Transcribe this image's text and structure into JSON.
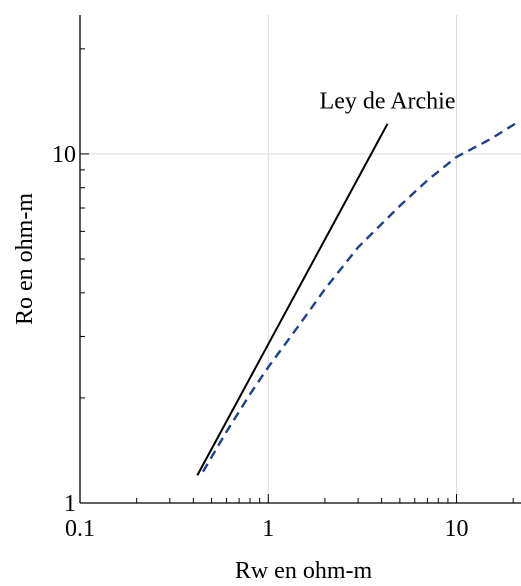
{
  "chart_data": {
    "type": "line",
    "xlabel": "Rw en ohm-m",
    "ylabel": "Ro en ohm-m",
    "x_scale": "log",
    "y_scale": "log",
    "xlim": [
      0.1,
      22
    ],
    "ylim": [
      1,
      25
    ],
    "grid": true,
    "x_ticks": [
      {
        "value": 0.1,
        "label": "0.1"
      },
      {
        "value": 1,
        "label": "1"
      },
      {
        "value": 10,
        "label": "10"
      }
    ],
    "y_ticks": [
      {
        "value": 1,
        "label": "1"
      },
      {
        "value": 10,
        "label": "10"
      }
    ],
    "annotations": [
      {
        "text": "Ley de Archie",
        "x": 4.3,
        "y": 13.5
      }
    ],
    "series": [
      {
        "name": "Ley de Archie",
        "color": "#000000",
        "style": "solid",
        "x": [
          0.42,
          4.3
        ],
        "y": [
          1.2,
          12.2
        ]
      },
      {
        "color": "#1f3f8f",
        "style": "dashed",
        "x": [
          0.45,
          0.6,
          0.8,
          1,
          1.5,
          2,
          3,
          5,
          7,
          10,
          15,
          21
        ],
        "y": [
          1.23,
          1.6,
          2.05,
          2.45,
          3.3,
          4.1,
          5.4,
          7.1,
          8.4,
          9.8,
          11.0,
          12.3
        ]
      }
    ]
  }
}
